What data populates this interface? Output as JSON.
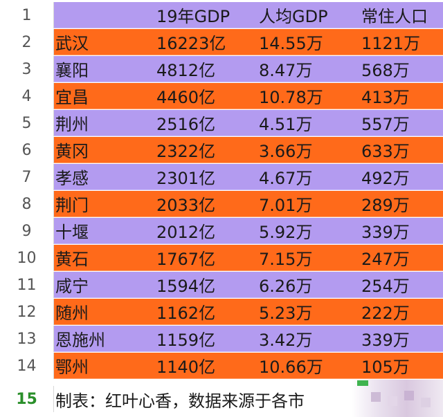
{
  "colors": {
    "purple": "#b39bf0",
    "orange": "#ff6a1a",
    "rownum_green": "#2a8f2a"
  },
  "header": {
    "row": "1",
    "cells": [
      "",
      "19年GDP",
      "人均GDP",
      "常住人口"
    ]
  },
  "rows": [
    {
      "row": "2",
      "city": "武汉",
      "gdp": "16223亿",
      "per_capita": "14.55万",
      "population": "1121万",
      "color": "orange"
    },
    {
      "row": "3",
      "city": "襄阳",
      "gdp": "4812亿",
      "per_capita": "8.47万",
      "population": "568万",
      "color": "purple"
    },
    {
      "row": "4",
      "city": "宜昌",
      "gdp": "4460亿",
      "per_capita": "10.78万",
      "population": "413万",
      "color": "orange"
    },
    {
      "row": "5",
      "city": "荆州",
      "gdp": "2516亿",
      "per_capita": "4.51万",
      "population": "557万",
      "color": "purple"
    },
    {
      "row": "6",
      "city": "黄冈",
      "gdp": "2322亿",
      "per_capita": "3.66万",
      "population": "633万",
      "color": "orange"
    },
    {
      "row": "7",
      "city": "孝感",
      "gdp": "2301亿",
      "per_capita": "4.67万",
      "population": "492万",
      "color": "purple"
    },
    {
      "row": "8",
      "city": "荆门",
      "gdp": "2033亿",
      "per_capita": "7.01万",
      "population": "289万",
      "color": "orange"
    },
    {
      "row": "9",
      "city": "十堰",
      "gdp": "2012亿",
      "per_capita": "5.92万",
      "population": "339万",
      "color": "purple"
    },
    {
      "row": "10",
      "city": "黄石",
      "gdp": "1767亿",
      "per_capita": "7.15万",
      "population": "247万",
      "color": "orange"
    },
    {
      "row": "11",
      "city": "咸宁",
      "gdp": "1594亿",
      "per_capita": "6.26万",
      "population": "254万",
      "color": "purple"
    },
    {
      "row": "12",
      "city": "随州",
      "gdp": "1162亿",
      "per_capita": "5.23万",
      "population": "222万",
      "color": "orange"
    },
    {
      "row": "13",
      "city": "恩施州",
      "gdp": "1159亿",
      "per_capita": "3.42万",
      "population": "339万",
      "color": "purple"
    },
    {
      "row": "14",
      "city": "鄂州",
      "gdp": "1140亿",
      "per_capita": "10.66万",
      "population": "105万",
      "color": "orange"
    }
  ],
  "footer": {
    "row": "15",
    "text": "制表：红叶心香，数据来源于各市"
  }
}
